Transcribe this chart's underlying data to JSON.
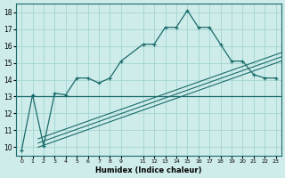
{
  "xlabel": "Humidex (Indice chaleur)",
  "bg_color": "#ceecea",
  "grid_color": "#a8d8d4",
  "line_color": "#1a6b6b",
  "xlim": [
    -0.5,
    23.5
  ],
  "ylim": [
    9.5,
    18.5
  ],
  "yticks": [
    10,
    11,
    12,
    13,
    14,
    15,
    16,
    17,
    18
  ],
  "xtick_positions": [
    0,
    1,
    2,
    3,
    4,
    5,
    6,
    7,
    8,
    9,
    11,
    12,
    13,
    14,
    15,
    16,
    17,
    18,
    19,
    20,
    21,
    22,
    23
  ],
  "xtick_labels": [
    "0",
    "1",
    "2",
    "3",
    "4",
    "5",
    "6",
    "7",
    "8",
    "9",
    "11",
    "12",
    "13",
    "14",
    "15",
    "16",
    "17",
    "18",
    "19",
    "20",
    "21",
    "22",
    "23"
  ],
  "main_curve_x": [
    0,
    1,
    2,
    3,
    4,
    5,
    6,
    7,
    8,
    9,
    11,
    12,
    13,
    14,
    15,
    16,
    17,
    18,
    19,
    20,
    21,
    22,
    23
  ],
  "main_curve_y": [
    9.8,
    13.1,
    10.1,
    13.2,
    13.1,
    14.1,
    14.1,
    13.8,
    14.1,
    15.1,
    16.1,
    16.1,
    17.1,
    17.1,
    18.1,
    17.1,
    17.1,
    16.1,
    15.1,
    15.1,
    14.3,
    14.1,
    14.1
  ],
  "flat_line_x": [
    -0.5,
    23.5
  ],
  "flat_line_y": [
    13.0,
    13.0
  ],
  "diag_line1_x": [
    1.5,
    23.5
  ],
  "diag_line1_y": [
    10.0,
    15.1
  ],
  "diag_line2_x": [
    1.5,
    23.5
  ],
  "diag_line2_y": [
    10.25,
    15.35
  ],
  "diag_line3_x": [
    1.5,
    23.5
  ],
  "diag_line3_y": [
    10.5,
    15.6
  ]
}
